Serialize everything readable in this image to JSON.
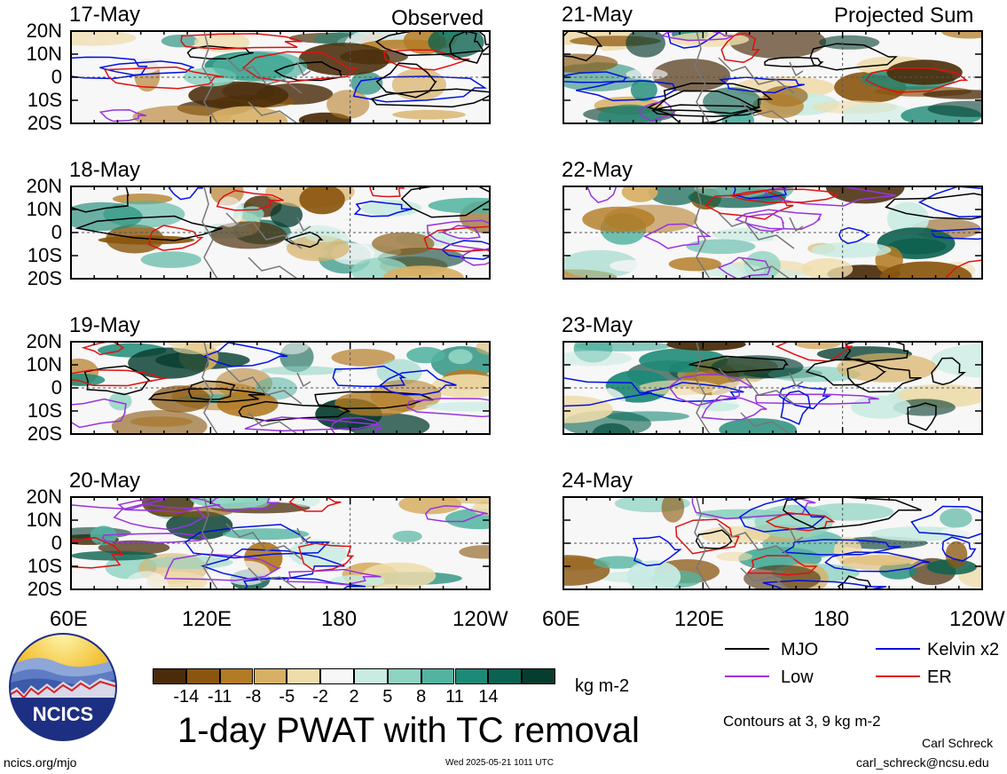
{
  "headers": {
    "observed": "Observed",
    "projected": "Projected Sum"
  },
  "panels": [
    {
      "date": "17-May",
      "col": 0,
      "row": 0
    },
    {
      "date": "18-May",
      "col": 0,
      "row": 1
    },
    {
      "date": "19-May",
      "col": 0,
      "row": 2
    },
    {
      "date": "20-May",
      "col": 0,
      "row": 3
    },
    {
      "date": "21-May",
      "col": 1,
      "row": 0
    },
    {
      "date": "22-May",
      "col": 1,
      "row": 1
    },
    {
      "date": "23-May",
      "col": 1,
      "row": 2
    },
    {
      "date": "24-May",
      "col": 1,
      "row": 3
    }
  ],
  "lat_ticks": [
    "20N",
    "10N",
    "0",
    "10S",
    "20S"
  ],
  "lon_ticks": [
    "60E",
    "120E",
    "180",
    "120W"
  ],
  "lon_ticks_right": [
    "60E",
    "120E",
    "180",
    "120W"
  ],
  "colorbar": {
    "ticks": [
      "-14",
      "-11",
      "-8",
      "-5",
      "-2",
      "2",
      "5",
      "8",
      "11",
      "14"
    ],
    "colors": [
      "#4a2c0a",
      "#8a560f",
      "#b37b25",
      "#d7b066",
      "#efdcab",
      "#f7f7f7",
      "#c8ebe2",
      "#8fd3c2",
      "#52b3a0",
      "#1d8a77",
      "#0c6250",
      "#063d30"
    ],
    "unit": "kg m-2"
  },
  "legend": {
    "items": [
      {
        "label": "MJO",
        "color": "#000000"
      },
      {
        "label": "Kelvin x2",
        "color": "#0010e0"
      },
      {
        "label": "Low",
        "color": "#9933dd"
      },
      {
        "label": "ER",
        "color": "#e01010"
      }
    ],
    "contours_note": "Contours at 3, 9 kg m-2"
  },
  "title": "1-day PWAT with TC removal",
  "logo_text": "NCICS",
  "footer": {
    "left": "ncics.org/mjo",
    "center": "Wed 2025-05-21 1011 UTC",
    "author": "Carl Schreck",
    "email": "carl_schreck@ncsu.edu"
  },
  "chart_data": {
    "type": "heatmap",
    "variable": "1-day PWAT with TC removal",
    "unit": "kg m-2",
    "x_range": [
      "60E",
      "120W"
    ],
    "y_range": [
      "20S",
      "20N"
    ],
    "contour_levels": [
      3,
      9
    ],
    "series": [
      {
        "name": "MJO"
      },
      {
        "name": "Kelvin x2"
      },
      {
        "name": "Low"
      },
      {
        "name": "ER"
      }
    ]
  }
}
